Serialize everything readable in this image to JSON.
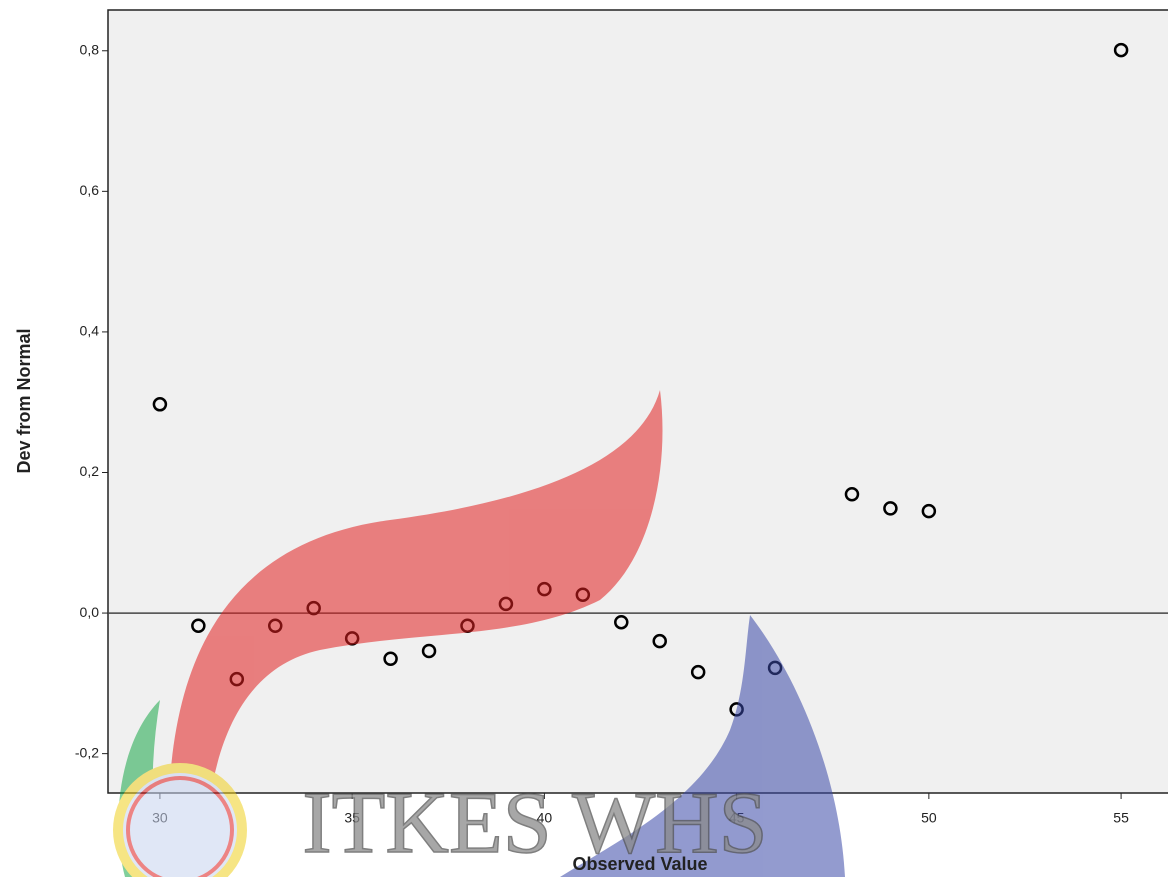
{
  "chart_data": {
    "type": "scatter",
    "x_label": "Observed Value",
    "y_label": "Dev from Normal",
    "x": [
      30,
      31,
      32,
      33,
      34,
      35,
      36,
      37,
      38,
      39,
      40,
      41,
      42,
      43,
      44,
      45,
      46,
      48,
      49,
      50,
      55
    ],
    "values": [
      0.297,
      -0.018,
      -0.094,
      -0.018,
      0.007,
      -0.036,
      -0.065,
      -0.054,
      -0.018,
      0.013,
      0.034,
      0.026,
      -0.013,
      -0.04,
      -0.084,
      -0.137,
      -0.078,
      0.169,
      0.149,
      0.145,
      0.801
    ],
    "color": "#000000",
    "xlim": [
      28.65,
      56.22
    ],
    "ylim": [
      -0.256,
      0.858
    ],
    "xticks": [
      30,
      35,
      40,
      45,
      50,
      55
    ],
    "yticks": [
      {
        "value": -0.2,
        "label": "-0,2"
      },
      {
        "value": 0,
        "label": "0,0"
      },
      {
        "value": 0.2,
        "label": "0,2"
      },
      {
        "value": 0.4,
        "label": "0,4"
      },
      {
        "value": 0.6,
        "label": "0,6"
      },
      {
        "value": 0.8,
        "label": "0,8"
      }
    ],
    "reference_line": 0,
    "watermark": "ITKES WHS"
  }
}
